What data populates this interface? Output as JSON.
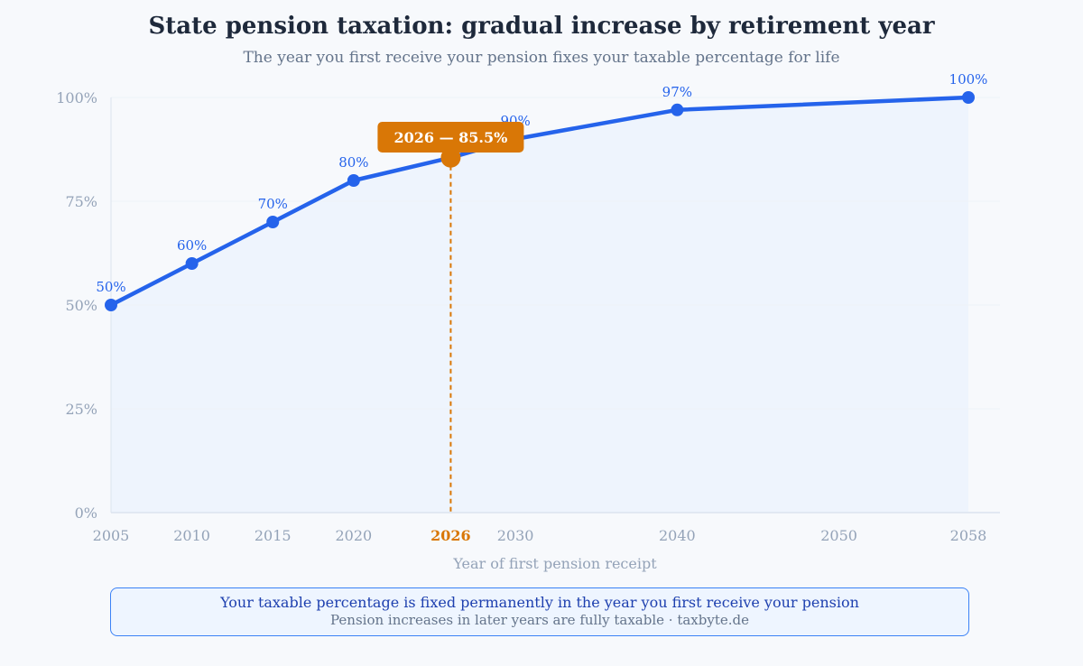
{
  "chart_data": {
    "type": "line",
    "title": "State pension taxation: gradual increase by retirement year",
    "subtitle": "The year you first receive your pension fixes your taxable percentage for life",
    "xlabel": "Year of first pension receipt",
    "ylabel": "",
    "xlim": [
      2005,
      2058
    ],
    "ylim": [
      0,
      100
    ],
    "x_ticks": [
      2005,
      2010,
      2015,
      2020,
      2026,
      2030,
      2040,
      2050,
      2058
    ],
    "y_ticks": [
      0,
      25,
      50,
      75,
      100
    ],
    "y_tick_suffix": "%",
    "grid": true,
    "series": [
      {
        "x": [
          2005,
          2010,
          2015,
          2020,
          2026,
          2030,
          2040,
          2058
        ],
        "y": [
          50,
          60,
          70,
          80,
          85.5,
          90,
          97,
          100
        ],
        "labels": [
          "50%",
          "60%",
          "70%",
          "80%",
          "",
          "90%",
          "97%",
          "100%"
        ]
      }
    ],
    "highlight": {
      "x": 2026,
      "y": 85.5,
      "label": "2026 — 85.5%",
      "tick_label": "2026"
    },
    "colors": {
      "line": "#2563eb",
      "fill": "#eef4fd",
      "highlight": "#d97706",
      "tick": "#94a3b8",
      "grid": "#eef2f7"
    }
  },
  "footer": {
    "line1": "Your taxable percentage is fixed permanently in the year you first receive your pension",
    "line2": "Pension increases in later years are fully taxable · taxbyte.de"
  }
}
